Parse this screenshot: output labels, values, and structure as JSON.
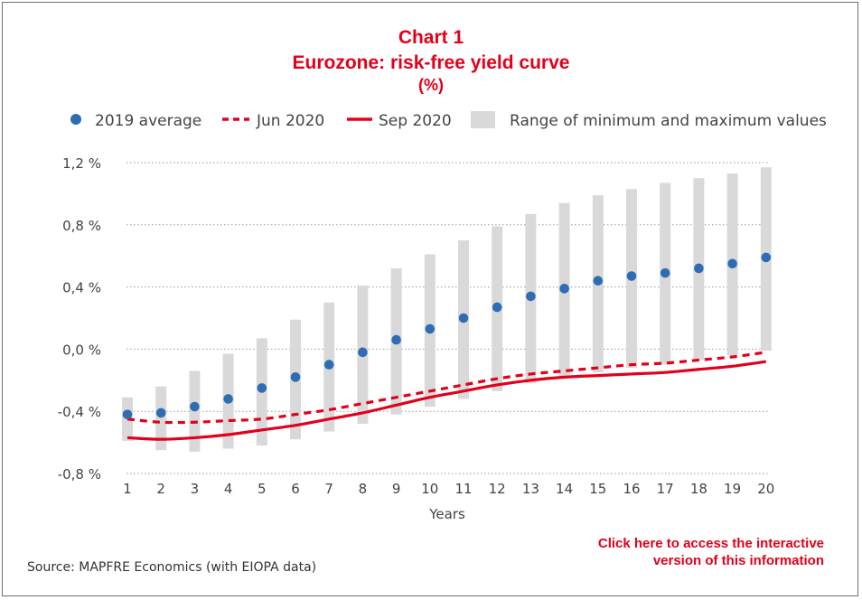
{
  "chart_data": {
    "type": "line",
    "title_label": "Chart 1",
    "title": "Eurozone: risk-free yield curve",
    "subtitle": "(%)",
    "xlabel": "Years",
    "ylabel": "",
    "x": [
      1,
      2,
      3,
      4,
      5,
      6,
      7,
      8,
      9,
      10,
      11,
      12,
      13,
      14,
      15,
      16,
      17,
      18,
      19,
      20
    ],
    "ylim": [
      -0.8,
      1.2
    ],
    "yticks": [
      -0.8,
      -0.4,
      0.0,
      0.4,
      0.8,
      1.2
    ],
    "ytick_labels": [
      "-0,8 %",
      "-0,4 %",
      "0,0 %",
      "0,4 %",
      "0,8 %",
      "1,2 %"
    ],
    "legend": [
      "2019 average",
      "Jun 2020",
      "Sep 2020",
      "Range of minimum and maximum values"
    ],
    "legend_position": "top",
    "grid": "horizontal dotted",
    "series": [
      {
        "name": "2019 average",
        "kind": "points",
        "color": "#2e6db4",
        "values": [
          -0.42,
          -0.41,
          -0.37,
          -0.32,
          -0.25,
          -0.18,
          -0.1,
          -0.02,
          0.06,
          0.13,
          0.2,
          0.27,
          0.34,
          0.39,
          0.44,
          0.47,
          0.49,
          0.52,
          0.55,
          0.59
        ]
      },
      {
        "name": "Jun 2020",
        "kind": "dashed-line",
        "color": "#e2001a",
        "values": [
          -0.45,
          -0.47,
          -0.47,
          -0.46,
          -0.45,
          -0.42,
          -0.39,
          -0.35,
          -0.31,
          -0.27,
          -0.23,
          -0.19,
          -0.16,
          -0.14,
          -0.12,
          -0.1,
          -0.09,
          -0.07,
          -0.05,
          -0.02
        ]
      },
      {
        "name": "Sep 2020",
        "kind": "solid-line",
        "color": "#e2001a",
        "values": [
          -0.57,
          -0.58,
          -0.57,
          -0.55,
          -0.52,
          -0.49,
          -0.45,
          -0.41,
          -0.36,
          -0.31,
          -0.27,
          -0.23,
          -0.2,
          -0.18,
          -0.17,
          -0.16,
          -0.15,
          -0.13,
          -0.11,
          -0.08
        ]
      },
      {
        "name": "Range of minimum and maximum values",
        "kind": "range-bar",
        "color": "#d9d9d9",
        "min": [
          -0.59,
          -0.65,
          -0.66,
          -0.64,
          -0.62,
          -0.58,
          -0.53,
          -0.48,
          -0.42,
          -0.37,
          -0.32,
          -0.27,
          -0.22,
          -0.18,
          -0.15,
          -0.12,
          -0.1,
          -0.07,
          -0.04,
          -0.01
        ],
        "max": [
          -0.31,
          -0.24,
          -0.14,
          -0.03,
          0.07,
          0.19,
          0.3,
          0.41,
          0.52,
          0.61,
          0.7,
          0.79,
          0.87,
          0.94,
          0.99,
          1.03,
          1.07,
          1.1,
          1.13,
          1.17
        ]
      }
    ]
  },
  "footer": {
    "source": "Source: MAPFRE Economics (with EIOPA data)",
    "link_line1": "Click here to access the interactive",
    "link_line2": "version of this information"
  }
}
